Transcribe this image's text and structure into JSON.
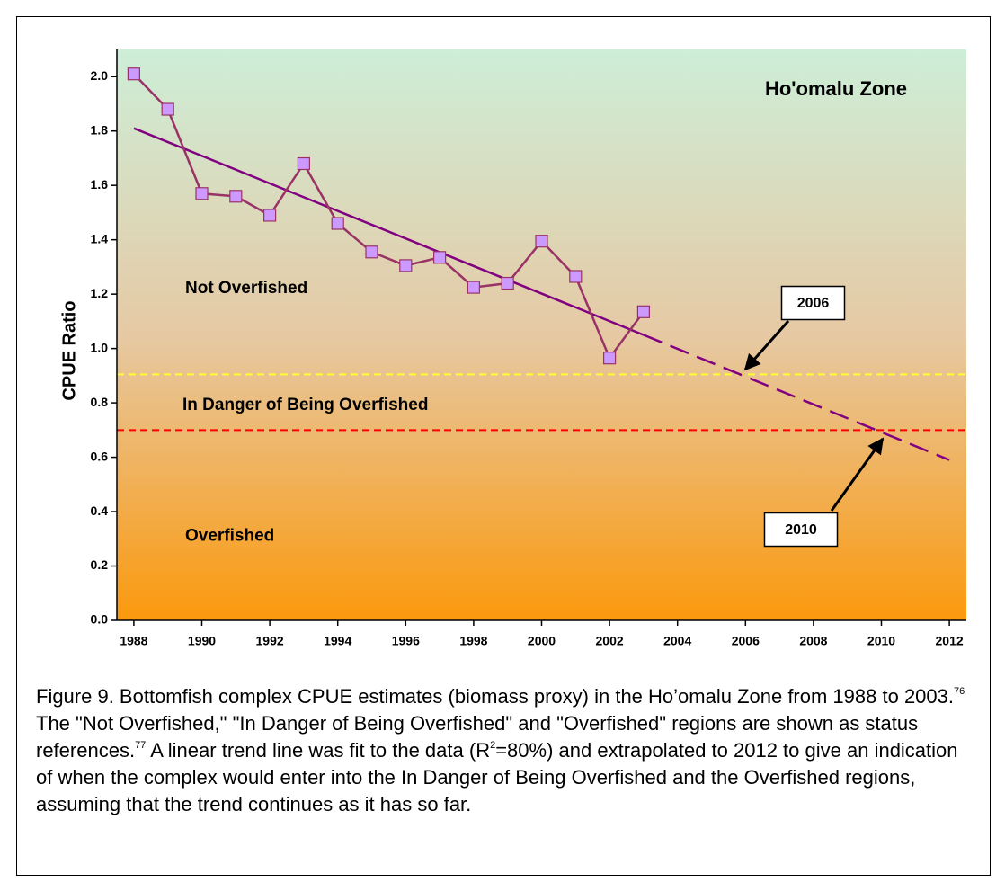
{
  "chart_data": {
    "type": "line",
    "title": "Ho'omalu Zone",
    "y_label": "CPUE Ratio",
    "x": [
      1988,
      1989,
      1990,
      1991,
      1992,
      1993,
      1994,
      1995,
      1996,
      1997,
      1998,
      1999,
      2000,
      2001,
      2002,
      2003
    ],
    "series": [
      {
        "color": "#993366",
        "marker_color": "#cc99ff",
        "values": [
          2.01,
          1.88,
          1.57,
          1.56,
          1.49,
          1.68,
          1.46,
          1.355,
          1.305,
          1.335,
          1.225,
          1.24,
          1.395,
          1.265,
          0.965,
          1.135
        ]
      }
    ],
    "trend": {
      "color": "#800080",
      "x": [
        1988,
        2003,
        2012
      ],
      "values": [
        1.81,
        1.05,
        0.59
      ]
    },
    "reference_lines": [
      {
        "value": 0.905,
        "color": "#ffff33"
      },
      {
        "value": 0.7,
        "color": "#ff0000"
      }
    ],
    "zones": [
      {
        "label": "Not Overfished",
        "value": 1.22
      },
      {
        "label": "In Danger of Being Overfished",
        "value": 0.79
      },
      {
        "label": "Overfished",
        "value": 0.31
      }
    ],
    "annotations": [
      "2006",
      "2010"
    ],
    "xlim": [
      1987.5,
      2012.5
    ],
    "xticks": [
      1988,
      1990,
      1992,
      1994,
      1996,
      1998,
      2000,
      2002,
      2004,
      2006,
      2008,
      2010,
      2012
    ],
    "ylim": [
      0,
      2.1
    ],
    "yticks": [
      {
        "value": 0,
        "label": "0.0"
      },
      0.2,
      0.4,
      0.6,
      0.8,
      {
        "value": 1,
        "label": "1.0"
      },
      1.2,
      1.4,
      1.6,
      1.8,
      {
        "value": 2,
        "label": "2.0"
      }
    ],
    "background_gradient": [
      "#cdeed8",
      "#e6c9a4",
      "#fb990d"
    ]
  },
  "caption": {
    "parts": [
      "Figure 9.  Bottomfish complex CPUE estimates (biomass proxy) in the Ho’omalu Zone from 1988 to 2003.",
      "76",
      "  The \"Not Overfished,\" \"In Danger of Being Overfished\" and \"Overfished\" regions are shown as status references.",
      "77",
      "  A linear trend line was fit to the data (R",
      "2",
      "=80%) and extrapolated to 2012 to give an indication of when the complex would enter into the In Danger of Being Overfished and the Overfished regions, assuming that the trend continues as it has so far."
    ]
  }
}
